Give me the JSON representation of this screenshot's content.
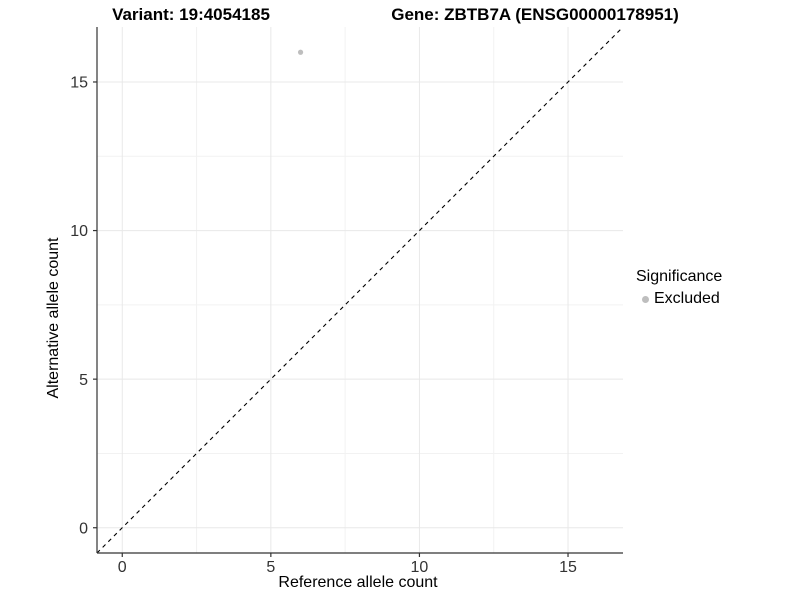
{
  "titles": {
    "variant": "Variant: 19:4054185",
    "gene": "Gene: ZBTB7A (ENSG00000178951)"
  },
  "chart_data": {
    "type": "scatter",
    "xlabel": "Reference allele count",
    "ylabel": "Alternative allele count",
    "xlim": [
      -0.85,
      16.85
    ],
    "ylim": [
      -0.85,
      16.85
    ],
    "x_ticks": [
      0,
      5,
      10,
      15
    ],
    "y_ticks": [
      0,
      5,
      10,
      15
    ],
    "x_minor_ticks": [
      2.5,
      7.5,
      12.5
    ],
    "y_minor_ticks": [
      2.5,
      7.5,
      12.5
    ],
    "grid": "major+minor",
    "points": [
      {
        "x": 6,
        "y": 16,
        "series": "Excluded"
      }
    ],
    "reference_line": {
      "kind": "identity",
      "slope": 1,
      "intercept": 0,
      "linetype": "dashed",
      "color": "#000000"
    },
    "legend": {
      "title": "Significance",
      "position": "right",
      "entries": [
        {
          "label": "Excluded",
          "color": "#bebebe"
        }
      ]
    },
    "colors": {
      "point": "#bebebe",
      "axis": "#333333",
      "tick_text": "#333333",
      "grid_major": "#e8e8e8",
      "grid_minor": "#f2f2f2",
      "background": "#ffffff"
    }
  }
}
